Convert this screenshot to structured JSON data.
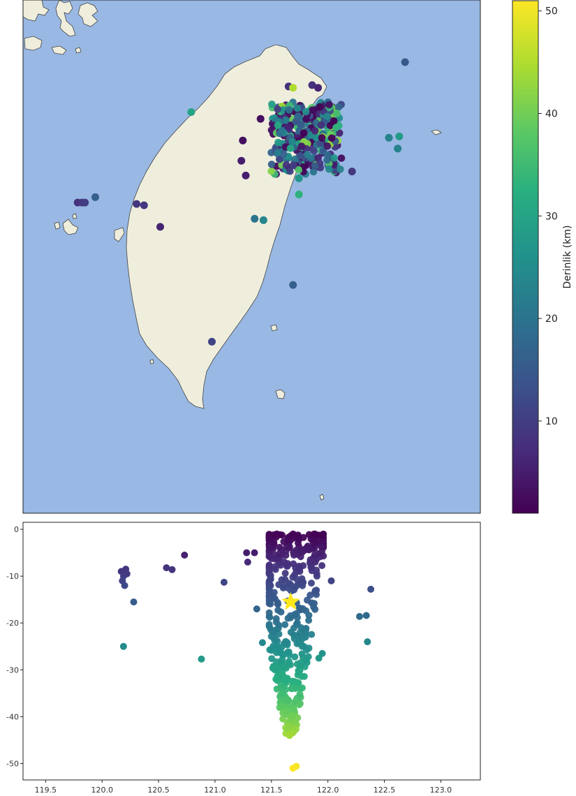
{
  "chart_data": [
    {
      "type": "scatter",
      "title": "",
      "xlabel": "",
      "ylabel": "",
      "background": {
        "sea_color": "#99b8e3",
        "land_color": "#efeedd"
      },
      "xlim": [
        119.8,
        122.9
      ],
      "ylim": [
        21.8,
        25.6
      ],
      "colormap": "viridis",
      "color_range": [
        1,
        51
      ],
      "colorbar": {
        "label": "Derinlik (km)",
        "ticks": [
          10,
          20,
          30,
          40,
          50
        ],
        "placement": "right"
      },
      "series": [
        {
          "points": [
            {
              "x": 122.39,
              "y": 25.14,
              "depth": 15
            },
            {
              "x": 121.6,
              "y": 24.96,
              "depth": 8
            },
            {
              "x": 121.63,
              "y": 24.95,
              "depth": 45
            },
            {
              "x": 121.76,
              "y": 24.97,
              "depth": 8
            },
            {
              "x": 121.8,
              "y": 24.95,
              "depth": 6
            },
            {
              "x": 120.94,
              "y": 24.77,
              "depth": 30
            },
            {
              "x": 121.41,
              "y": 24.72,
              "depth": 3
            },
            {
              "x": 121.29,
              "y": 24.56,
              "depth": 3
            },
            {
              "x": 121.28,
              "y": 24.41,
              "depth": 5
            },
            {
              "x": 121.31,
              "y": 24.3,
              "depth": 5
            },
            {
              "x": 122.28,
              "y": 24.58,
              "depth": 23
            },
            {
              "x": 122.35,
              "y": 24.59,
              "depth": 28
            },
            {
              "x": 122.34,
              "y": 24.5,
              "depth": 23
            },
            {
              "x": 122.03,
              "y": 24.33,
              "depth": 9
            },
            {
              "x": 121.67,
              "y": 24.28,
              "depth": 27
            },
            {
              "x": 121.67,
              "y": 24.16,
              "depth": 33
            },
            {
              "x": 120.29,
              "y": 24.14,
              "depth": 16
            },
            {
              "x": 120.17,
              "y": 24.1,
              "depth": 8
            },
            {
              "x": 120.2,
              "y": 24.1,
              "depth": 9
            },
            {
              "x": 120.22,
              "y": 24.1,
              "depth": 10
            },
            {
              "x": 120.57,
              "y": 24.09,
              "depth": 9
            },
            {
              "x": 120.62,
              "y": 24.08,
              "depth": 9
            },
            {
              "x": 121.37,
              "y": 23.98,
              "depth": 20
            },
            {
              "x": 121.43,
              "y": 23.97,
              "depth": 24
            },
            {
              "x": 120.73,
              "y": 23.92,
              "depth": 6
            },
            {
              "x": 121.63,
              "y": 23.49,
              "depth": 16
            },
            {
              "x": 121.08,
              "y": 23.07,
              "depth": 11
            }
          ],
          "cluster": {
            "x_range": [
              121.48,
              121.96
            ],
            "y_range": [
              24.31,
              24.85
            ],
            "depth_range": [
              1,
              44
            ],
            "estimated_count": 420
          }
        }
      ]
    },
    {
      "type": "scatter",
      "title": "",
      "xlabel": "",
      "ylabel": "",
      "xlim": [
        119.3,
        123.35
      ],
      "ylim": [
        -53.5,
        1.5
      ],
      "xticks": [
        "119.5",
        "120.0",
        "120.5",
        "121.0",
        "121.5",
        "122.0",
        "122.5",
        "123.0"
      ],
      "yticks": [
        "0",
        "-10",
        "-20",
        "-30",
        "-40",
        "-50"
      ],
      "colormap": "viridis",
      "color_by": "depth",
      "series": [
        {
          "points": [
            {
              "x": 120.17,
              "y": -9
            },
            {
              "x": 120.19,
              "y": -10
            },
            {
              "x": 120.21,
              "y": -8.5
            },
            {
              "x": 120.18,
              "y": -11
            },
            {
              "x": 120.2,
              "y": -12
            },
            {
              "x": 120.22,
              "y": -9.5
            },
            {
              "x": 120.28,
              "y": -15.5
            },
            {
              "x": 120.19,
              "y": -25
            },
            {
              "x": 120.57,
              "y": -8.2
            },
            {
              "x": 120.62,
              "y": -8.6
            },
            {
              "x": 120.73,
              "y": -5.5
            },
            {
              "x": 120.88,
              "y": -27.7
            },
            {
              "x": 121.08,
              "y": -11.3
            },
            {
              "x": 121.28,
              "y": -5
            },
            {
              "x": 121.29,
              "y": -7
            },
            {
              "x": 121.35,
              "y": -5
            },
            {
              "x": 121.37,
              "y": -17
            },
            {
              "x": 121.42,
              "y": -24.2
            },
            {
              "x": 122.28,
              "y": -18.6
            },
            {
              "x": 122.34,
              "y": -18.4
            },
            {
              "x": 122.35,
              "y": -24
            },
            {
              "x": 122.38,
              "y": -12.8
            },
            {
              "x": 121.92,
              "y": -27.5
            },
            {
              "x": 121.95,
              "y": -26.5
            },
            {
              "x": 122.03,
              "y": -11
            },
            {
              "x": 121.66,
              "y": -44
            },
            {
              "x": 121.69,
              "y": -51
            },
            {
              "x": 121.72,
              "y": -50.6
            }
          ],
          "cluster": {
            "x_range": [
              121.48,
              121.96
            ],
            "y_range": [
              -44,
              -1
            ],
            "estimated_count": 420
          }
        },
        {
          "marker": "star",
          "color": "#ffe81a",
          "points": [
            {
              "x": 121.67,
              "y": -15.5
            }
          ]
        }
      ]
    }
  ]
}
